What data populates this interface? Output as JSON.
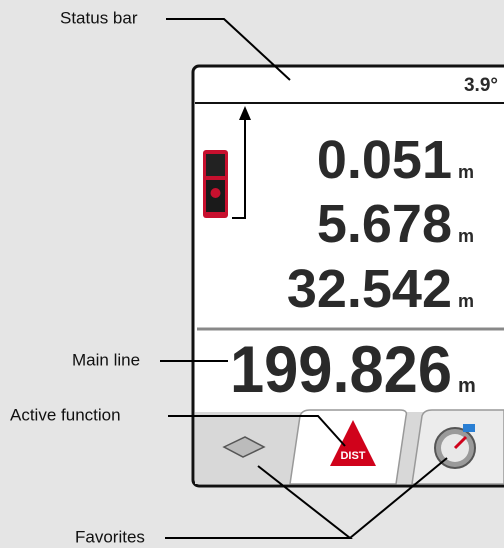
{
  "callouts": {
    "status_bar": "Status bar",
    "main_line": "Main line",
    "active_function": "Active function",
    "favorites": "Favorites"
  },
  "screen": {
    "status_bar": {
      "tilt": "3.9°"
    },
    "measurements": [
      {
        "value": "0.051",
        "unit": "m"
      },
      {
        "value": "5.678",
        "unit": "m"
      },
      {
        "value": "32.542",
        "unit": "m"
      }
    ],
    "main_line": {
      "value": "199.826",
      "unit": "m"
    },
    "active_function": "DIST"
  }
}
